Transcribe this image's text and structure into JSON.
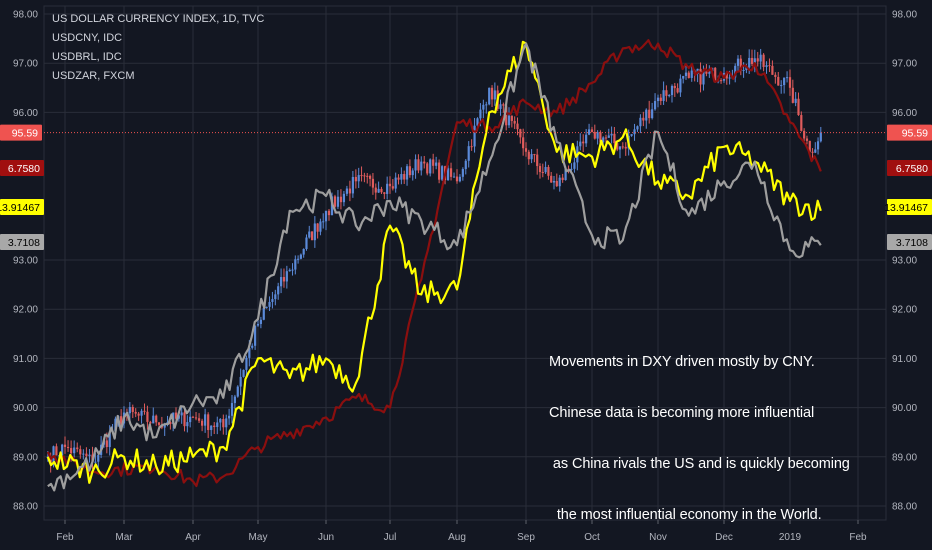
{
  "legend": {
    "main": "US DOLLAR CURRENCY INDEX, 1D, TVC",
    "s1": "USDCNY, IDC",
    "s2": "USDBRL, IDC",
    "s3": "USDZAR, FXCM"
  },
  "annotation": {
    "lines": [
      "Movements in DXY driven mostly by CNY.",
      "Chinese data is becoming more influential",
      " as China rivals the US and is quickly becoming",
      "  the most influential economy in the World."
    ]
  },
  "colors": {
    "background": "#131722",
    "grid": "#2a2e39",
    "up": "#5b8ad9",
    "down": "#e05c5c",
    "usdcny": "#8b0f0f",
    "usdbrl": "#ffff00",
    "usdzar": "#9e9e9e",
    "dxy_tag": "#ef5350"
  },
  "chart_data": {
    "type": "line",
    "title": "US DOLLAR CURRENCY INDEX, 1D, TVC",
    "x_ticks": [
      "Feb",
      "Mar",
      "Apr",
      "May",
      "Jun",
      "Jul",
      "Aug",
      "Sep",
      "Oct",
      "Nov",
      "Dec",
      "2019",
      "Feb"
    ],
    "y_ticks": [
      "98.00",
      "97.00",
      "96.00",
      "93.00",
      "92.00",
      "91.00",
      "90.00",
      "89.00",
      "88.00"
    ],
    "y_ticks_right": [
      "98.00",
      "97.00",
      "96.00",
      "93.00",
      "92.00",
      "91.00",
      "90.00",
      "89.00",
      "88.00"
    ],
    "ylim": [
      87.8,
      98.2
    ],
    "grid": true,
    "series": [
      {
        "name": "US DOLLAR CURRENCY INDEX, 1D, TVC",
        "style": "candlestick",
        "last_value": "95.59",
        "points": [
          [
            "Jan 24",
            89.0
          ],
          [
            "Feb 1",
            89.2
          ],
          [
            "Feb 15",
            88.9
          ],
          [
            "Mar 1",
            89.9
          ],
          [
            "Mar 15",
            89.7
          ],
          [
            "Apr 1",
            89.8
          ],
          [
            "Apr 15",
            89.6
          ],
          [
            "May 1",
            91.7
          ],
          [
            "May 15",
            92.8
          ],
          [
            "Jun 1",
            94.0
          ],
          [
            "Jun 15",
            94.6
          ],
          [
            "Jul 1",
            94.5
          ],
          [
            "Jul 15",
            95.0
          ],
          [
            "Aug 1",
            94.6
          ],
          [
            "Aug 15",
            96.5
          ],
          [
            "Sep 1",
            95.2
          ],
          [
            "Sep 15",
            94.5
          ],
          [
            "Oct 1",
            95.6
          ],
          [
            "Oct 15",
            95.3
          ],
          [
            "Nov 1",
            96.3
          ],
          [
            "Nov 15",
            96.7
          ],
          [
            "Dec 1",
            96.8
          ],
          [
            "Dec 15",
            97.1
          ],
          [
            "Jan 1",
            96.5
          ],
          [
            "Jan 10",
            95.2
          ],
          [
            "Jan 15",
            95.59
          ]
        ]
      },
      {
        "name": "USDCNY, IDC",
        "last_value": "6.7580",
        "points": [
          [
            "Jan 24",
            89.1
          ],
          [
            "Feb 15",
            88.7
          ],
          [
            "Mar 15",
            88.8
          ],
          [
            "Apr 1",
            88.5
          ],
          [
            "Apr 15",
            88.6
          ],
          [
            "May 1",
            89.2
          ],
          [
            "Jun 1",
            89.8
          ],
          [
            "Jun 15",
            90.2
          ],
          [
            "Jul 1",
            90.0
          ],
          [
            "Jul 15",
            92.6
          ],
          [
            "Aug 1",
            95.8
          ],
          [
            "Aug 15",
            95.7
          ],
          [
            "Sep 1",
            96.2
          ],
          [
            "Sep 15",
            96.0
          ],
          [
            "Oct 1",
            96.6
          ],
          [
            "Oct 15",
            97.3
          ],
          [
            "Nov 1",
            97.4
          ],
          [
            "Nov 15",
            96.9
          ],
          [
            "Dec 1",
            96.7
          ],
          [
            "Dec 15",
            97.0
          ],
          [
            "Jan 1",
            95.8
          ],
          [
            "Jan 15",
            94.8
          ]
        ]
      },
      {
        "name": "USDBRL, IDC",
        "last_value": "13.91467",
        "points": [
          [
            "Jan 24",
            89.0
          ],
          [
            "Feb 15",
            88.7
          ],
          [
            "Mar 1",
            89.0
          ],
          [
            "Mar 15",
            88.8
          ],
          [
            "Apr 1",
            89.0
          ],
          [
            "Apr 15",
            89.2
          ],
          [
            "May 1",
            91.0
          ],
          [
            "May 15",
            90.6
          ],
          [
            "Jun 1",
            91.0
          ],
          [
            "Jun 15",
            90.5
          ],
          [
            "Jul 1",
            93.7
          ],
          [
            "Jul 15",
            92.3
          ],
          [
            "Aug 1",
            92.4
          ],
          [
            "Aug 15",
            96.0
          ],
          [
            "Sep 1",
            97.4
          ],
          [
            "Sep 15",
            95.2
          ],
          [
            "Oct 1",
            95.1
          ],
          [
            "Oct 15",
            95.5
          ],
          [
            "Nov 1",
            94.6
          ],
          [
            "Nov 15",
            94.3
          ],
          [
            "Dec 1",
            95.3
          ],
          [
            "Dec 15",
            95.0
          ],
          [
            "Jan 1",
            94.2
          ],
          [
            "Jan 15",
            94.0
          ]
        ]
      },
      {
        "name": "USDZAR, FXCM",
        "last_value": "3.7108",
        "points": [
          [
            "Jan 24",
            88.4
          ],
          [
            "Feb 15",
            88.9
          ],
          [
            "Mar 1",
            89.8
          ],
          [
            "Mar 15",
            89.4
          ],
          [
            "Apr 1",
            90.1
          ],
          [
            "Apr 15",
            90.2
          ],
          [
            "May 1",
            91.8
          ],
          [
            "May 15",
            94.0
          ],
          [
            "Jun 1",
            94.3
          ],
          [
            "Jun 15",
            93.7
          ],
          [
            "Jul 1",
            94.2
          ],
          [
            "Jul 15",
            93.8
          ],
          [
            "Aug 1",
            93.3
          ],
          [
            "Aug 15",
            95.0
          ],
          [
            "Sep 1",
            97.4
          ],
          [
            "Sep 15",
            95.4
          ],
          [
            "Oct 1",
            93.5
          ],
          [
            "Oct 15",
            93.4
          ],
          [
            "Nov 1",
            95.6
          ],
          [
            "Nov 15",
            93.9
          ],
          [
            "Dec 1",
            94.6
          ],
          [
            "Dec 15",
            95.0
          ],
          [
            "Jan 1",
            93.2
          ],
          [
            "Jan 15",
            93.3
          ]
        ]
      }
    ],
    "tags_left": [
      "95.59",
      "6.7580",
      "13.91467",
      "3.7108"
    ],
    "tags_right": [
      "95.59",
      "6.7580",
      "13.91467",
      "3.7108"
    ]
  }
}
